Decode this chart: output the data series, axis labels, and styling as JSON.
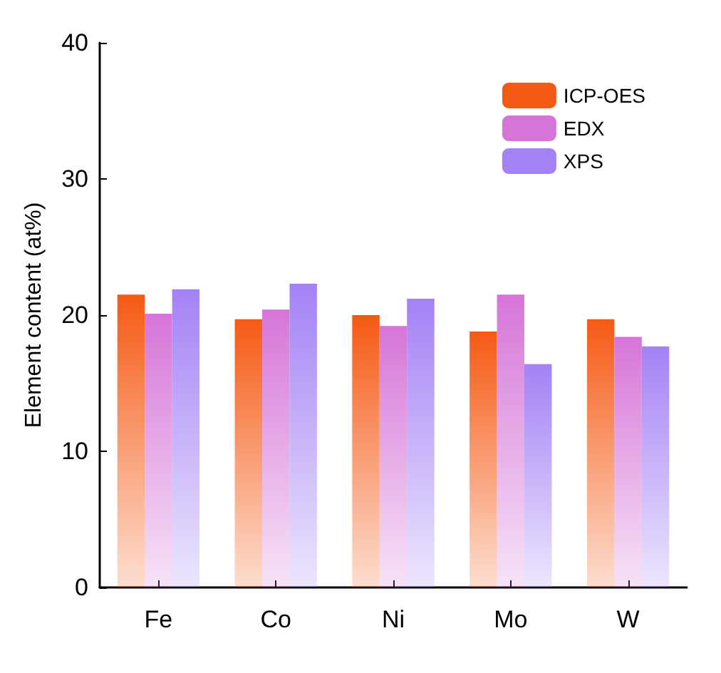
{
  "chart_data": {
    "type": "bar",
    "ylabel": "Element content (at%)",
    "categories": [
      "Fe",
      "Co",
      "Ni",
      "Mo",
      "W"
    ],
    "series": [
      {
        "name": "ICP-OES",
        "color": "#f55a14",
        "values": [
          21.5,
          19.7,
          20.0,
          18.8,
          19.7
        ]
      },
      {
        "name": "EDX",
        "color": "#d675d8",
        "values": [
          20.1,
          20.4,
          19.2,
          21.5,
          18.4
        ]
      },
      {
        "name": "XPS",
        "color": "#a382f5",
        "values": [
          21.9,
          22.3,
          21.2,
          16.4,
          17.7
        ]
      }
    ],
    "ylim": [
      0,
      40
    ],
    "yticks": [
      0,
      10,
      20,
      30,
      40
    ],
    "grid": false,
    "legend": "top right"
  }
}
